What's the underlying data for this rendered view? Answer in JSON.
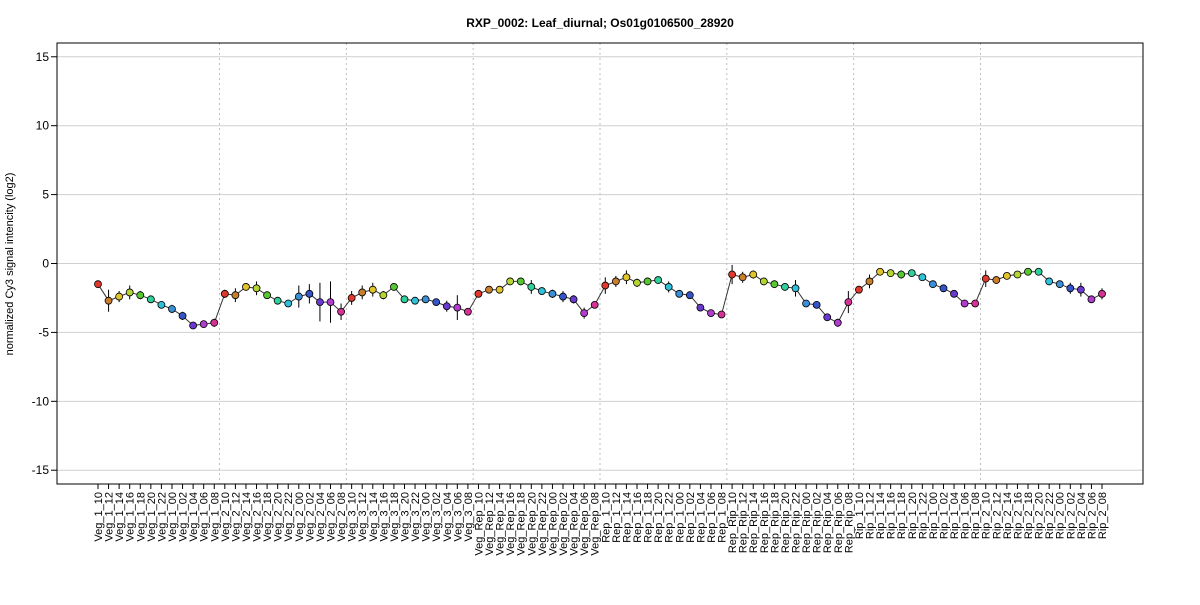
{
  "chart_data": {
    "type": "line",
    "title": "RXP_0002: Leaf_diurnal; Os01g0106500_28920",
    "xlabel": "",
    "ylabel": "normalized Cy3 signal intencity (log2)",
    "ylim": [
      -16,
      16
    ],
    "yticks": [
      -15,
      -10,
      -5,
      0,
      5,
      10,
      15
    ],
    "grid": "horizontal lines at y ticks; dotted vertical separators between groups",
    "group_separators_after": [
      11,
      23,
      35,
      47,
      59,
      71,
      83
    ],
    "categories": [
      "Veg_1_10",
      "Veg_1_12",
      "Veg_1_14",
      "Veg_1_16",
      "Veg_1_18",
      "Veg_1_20",
      "Veg_1_22",
      "Veg_1_00",
      "Veg_1_02",
      "Veg_1_04",
      "Veg_1_06",
      "Veg_1_08",
      "Veg_2_10",
      "Veg_2_12",
      "Veg_2_14",
      "Veg_2_16",
      "Veg_2_18",
      "Veg_2_20",
      "Veg_2_22",
      "Veg_2_00",
      "Veg_2_02",
      "Veg_2_04",
      "Veg_2_06",
      "Veg_2_08",
      "Veg_3_10",
      "Veg_3_12",
      "Veg_3_14",
      "Veg_3_16",
      "Veg_3_18",
      "Veg_3_20",
      "Veg_3_22",
      "Veg_3_00",
      "Veg_3_02",
      "Veg_3_04",
      "Veg_3_06",
      "Veg_3_08",
      "Veg_Rep_10",
      "Veg_Rep_12",
      "Veg_Rep_14",
      "Veg_Rep_16",
      "Veg_Rep_18",
      "Veg_Rep_20",
      "Veg_Rep_22",
      "Veg_Rep_00",
      "Veg_Rep_02",
      "Veg_Rep_04",
      "Veg_Rep_06",
      "Veg_Rep_08",
      "Rep_1_10",
      "Rep_1_12",
      "Rep_1_14",
      "Rep_1_16",
      "Rep_1_18",
      "Rep_1_20",
      "Rep_1_22",
      "Rep_1_00",
      "Rep_1_02",
      "Rep_1_04",
      "Rep_1_06",
      "Rep_1_08",
      "Rep_Rip_10",
      "Rep_Rip_12",
      "Rep_Rip_14",
      "Rep_Rip_16",
      "Rep_Rip_18",
      "Rep_Rip_20",
      "Rep_Rip_22",
      "Rep_Rip_00",
      "Rep_Rip_02",
      "Rep_Rip_04",
      "Rep_Rip_06",
      "Rep_Rip_08",
      "Rip_1_10",
      "Rip_1_12",
      "Rip_1_14",
      "Rip_1_16",
      "Rip_1_18",
      "Rip_1_20",
      "Rip_1_22",
      "Rip_1_00",
      "Rip_1_02",
      "Rip_1_04",
      "Rip_1_06",
      "Rip_1_08",
      "Rip_2_10",
      "Rip_2_12",
      "Rip_2_14",
      "Rip_2_16",
      "Rip_2_18",
      "Rip_2_20",
      "Rip_2_22",
      "Rip_2_00",
      "Rip_2_02",
      "Rip_2_04",
      "Rip_2_06",
      "Rip_2_08"
    ],
    "values": [
      -1.5,
      -2.7,
      -2.4,
      -2.1,
      -2.3,
      -2.6,
      -3.0,
      -3.3,
      -3.8,
      -4.5,
      -4.4,
      -4.3,
      -2.2,
      -2.3,
      -1.7,
      -1.8,
      -2.3,
      -2.7,
      -2.9,
      -2.4,
      -2.2,
      -2.8,
      -2.8,
      -3.5,
      -2.5,
      -2.1,
      -1.9,
      -2.3,
      -1.7,
      -2.6,
      -2.7,
      -2.6,
      -2.8,
      -3.1,
      -3.2,
      -3.5,
      -2.2,
      -1.9,
      -1.9,
      -1.3,
      -1.3,
      -1.7,
      -2.0,
      -2.2,
      -2.4,
      -2.6,
      -3.6,
      -3.0,
      -1.6,
      -1.3,
      -1.0,
      -1.4,
      -1.3,
      -1.2,
      -1.7,
      -2.2,
      -2.3,
      -3.2,
      -3.6,
      -3.7,
      -0.8,
      -1.0,
      -0.8,
      -1.3,
      -1.5,
      -1.7,
      -1.8,
      -2.9,
      -3.0,
      -3.9,
      -4.3,
      -2.8,
      -1.9,
      -1.3,
      -0.6,
      -0.7,
      -0.8,
      -0.7,
      -1.0,
      -1.5,
      -1.8,
      -2.2,
      -2.9,
      -2.9,
      -1.1,
      -1.2,
      -0.9,
      -0.8,
      -0.6,
      -0.6,
      -1.3,
      -1.5,
      -1.8,
      -1.9,
      -2.6,
      -2.2
    ],
    "error": [
      0.2,
      0.8,
      0.4,
      0.5,
      0.3,
      0.2,
      0.2,
      0.3,
      0.3,
      0.2,
      0.2,
      0.3,
      0.3,
      0.5,
      0.2,
      0.5,
      0.2,
      0.2,
      0.2,
      0.8,
      0.7,
      1.4,
      1.5,
      0.6,
      0.5,
      0.5,
      0.5,
      0.3,
      0.2,
      0.2,
      0.2,
      0.2,
      0.2,
      0.4,
      0.9,
      0.2,
      0.2,
      0.2,
      0.2,
      0.2,
      0.2,
      0.5,
      0.2,
      0.3,
      0.4,
      0.3,
      0.4,
      0.2,
      0.6,
      0.4,
      0.5,
      0.3,
      0.2,
      0.2,
      0.4,
      0.2,
      0.2,
      0.2,
      0.2,
      0.2,
      0.7,
      0.4,
      0.3,
      0.2,
      0.2,
      0.2,
      0.6,
      0.2,
      0.2,
      0.2,
      0.3,
      0.8,
      0.2,
      0.5,
      0.2,
      0.2,
      0.3,
      0.2,
      0.2,
      0.2,
      0.2,
      0.2,
      0.2,
      0.2,
      0.6,
      0.2,
      0.2,
      0.2,
      0.2,
      0.2,
      0.2,
      0.2,
      0.4,
      0.5,
      0.2,
      0.4
    ],
    "point_colors": [
      "#e0392c",
      "#c87e2d",
      "#e0c42a",
      "#b5d630",
      "#58c832",
      "#2fd09b",
      "#2ec1d9",
      "#3b8fd6",
      "#3455c9",
      "#6a3ad0",
      "#b23bd0",
      "#d43296",
      "#e0392c",
      "#c87e2d",
      "#e0c42a",
      "#b5d630",
      "#58c832",
      "#2fd09b",
      "#2ec1d9",
      "#3b8fd6",
      "#3455c9",
      "#6a3ad0",
      "#b23bd0",
      "#d43296",
      "#e0392c",
      "#c87e2d",
      "#e0c42a",
      "#b5d630",
      "#58c832",
      "#2fd09b",
      "#2ec1d9",
      "#3b8fd6",
      "#3455c9",
      "#6a3ad0",
      "#b23bd0",
      "#d43296",
      "#e0392c",
      "#c87e2d",
      "#e0c42a",
      "#b5d630",
      "#58c832",
      "#2fd09b",
      "#2ec1d9",
      "#3b8fd6",
      "#3455c9",
      "#6a3ad0",
      "#b23bd0",
      "#d43296",
      "#e0392c",
      "#c87e2d",
      "#e0c42a",
      "#b5d630",
      "#58c832",
      "#2fd09b",
      "#2ec1d9",
      "#3b8fd6",
      "#3455c9",
      "#6a3ad0",
      "#b23bd0",
      "#d43296",
      "#e0392c",
      "#c87e2d",
      "#e0c42a",
      "#b5d630",
      "#58c832",
      "#2fd09b",
      "#2ec1d9",
      "#3b8fd6",
      "#3455c9",
      "#6a3ad0",
      "#b23bd0",
      "#d43296",
      "#e0392c",
      "#c87e2d",
      "#e0c42a",
      "#b5d630",
      "#58c832",
      "#2fd09b",
      "#2ec1d9",
      "#3b8fd6",
      "#3455c9",
      "#6a3ad0",
      "#b23bd0",
      "#d43296",
      "#e0392c",
      "#c87e2d",
      "#e0c42a",
      "#b5d630",
      "#58c832",
      "#2fd09b",
      "#2ec1d9",
      "#3b8fd6",
      "#3455c9",
      "#6a3ad0",
      "#b23bd0",
      "#d43296"
    ],
    "line_color": "#333333",
    "gridline_color": "#cfcfcf"
  }
}
